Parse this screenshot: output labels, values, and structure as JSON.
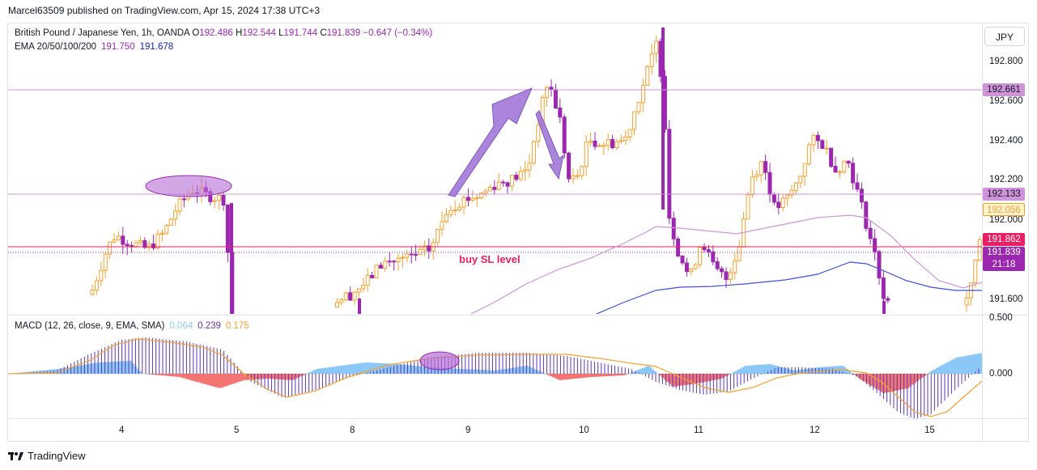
{
  "header": {
    "published": "Marcel63509 published on TradingView.com, Apr 15, 2024 17:38 UTC+3"
  },
  "legend": {
    "symbol": "British Pound / Japanese Yen, 1h, OANDA",
    "o_label": "O",
    "o_value": "192.486",
    "h_label": "H",
    "h_value": "192.544",
    "l_label": "L",
    "l_value": "191.744",
    "c_label": "C",
    "c_value": "191.839",
    "change": "−0.647 (−0.34%)",
    "ema_label": "EMA 20/50/100/200",
    "ema_value_1": "191.750",
    "ema_value_2": "191.678",
    "macd_label": "MACD (12, 26, close, 9, EMA, SMA)",
    "macd_value_1": "0.064",
    "macd_value_2": "0.239",
    "macd_value_3": "0.175"
  },
  "currency_button": "JPY",
  "price_axis": {
    "ticks": [
      "192.800",
      "192.600",
      "192.400",
      "192.200",
      "192.000",
      "191.600"
    ],
    "tags": [
      {
        "text": "192.661",
        "bg": "#ce93d8",
        "fg": "#131722"
      },
      {
        "text": "192.133",
        "bg": "#ce93d8",
        "fg": "#131722"
      },
      {
        "text": "192.056",
        "bg": "#fff3cd",
        "fg": "#f6a12c"
      },
      {
        "text": "191.862",
        "bg": "#e91e63",
        "fg": "#ffffff"
      },
      {
        "text": "191.839",
        "bg": "#9c27b0",
        "fg": "#ffffff"
      },
      {
        "text": "21:18",
        "bg": "#9c27b0",
        "fg": "#ffffff"
      }
    ]
  },
  "macd_axis": {
    "ticks": [
      "0.500",
      "0.000"
    ]
  },
  "time_axis": {
    "ticks": [
      "4",
      "5",
      "8",
      "9",
      "10",
      "11",
      "12",
      "15"
    ]
  },
  "annotation": {
    "text": "buy SL level"
  },
  "footer": {
    "brand": "TradingView"
  },
  "colors": {
    "bull": "#f6a12c",
    "bear": "#9c27b0",
    "ema_pink": "#ce93d8",
    "ema_blue": "#3f51e0",
    "hline": "#ce93d8",
    "sl_line": "#e91e63",
    "macd_line": "#5e35b1",
    "signal_line": "#f6a12c",
    "hist_pos": "#1e88e5",
    "hist_neg": "#f44336",
    "marker": "#b56cd6"
  },
  "chart_data": {
    "type": "candlestick",
    "ohlc_last": {
      "open": 192.486,
      "high": 192.544,
      "low": 191.744,
      "close": 191.839
    },
    "horizontal_levels": [
      192.661,
      192.133,
      191.862
    ],
    "y_axis_ticks": [
      192.8,
      192.6,
      192.4,
      192.2,
      192.0,
      191.6
    ],
    "x_axis_ticks": [
      "4",
      "5",
      "8",
      "9",
      "10",
      "11",
      "12",
      "15"
    ],
    "ema_values": [
      191.75,
      191.678
    ],
    "macd": {
      "histogram": 0.064,
      "macd": 0.239,
      "signal": 0.175,
      "y_axis_ticks": [
        0.5,
        0.0
      ]
    }
  }
}
